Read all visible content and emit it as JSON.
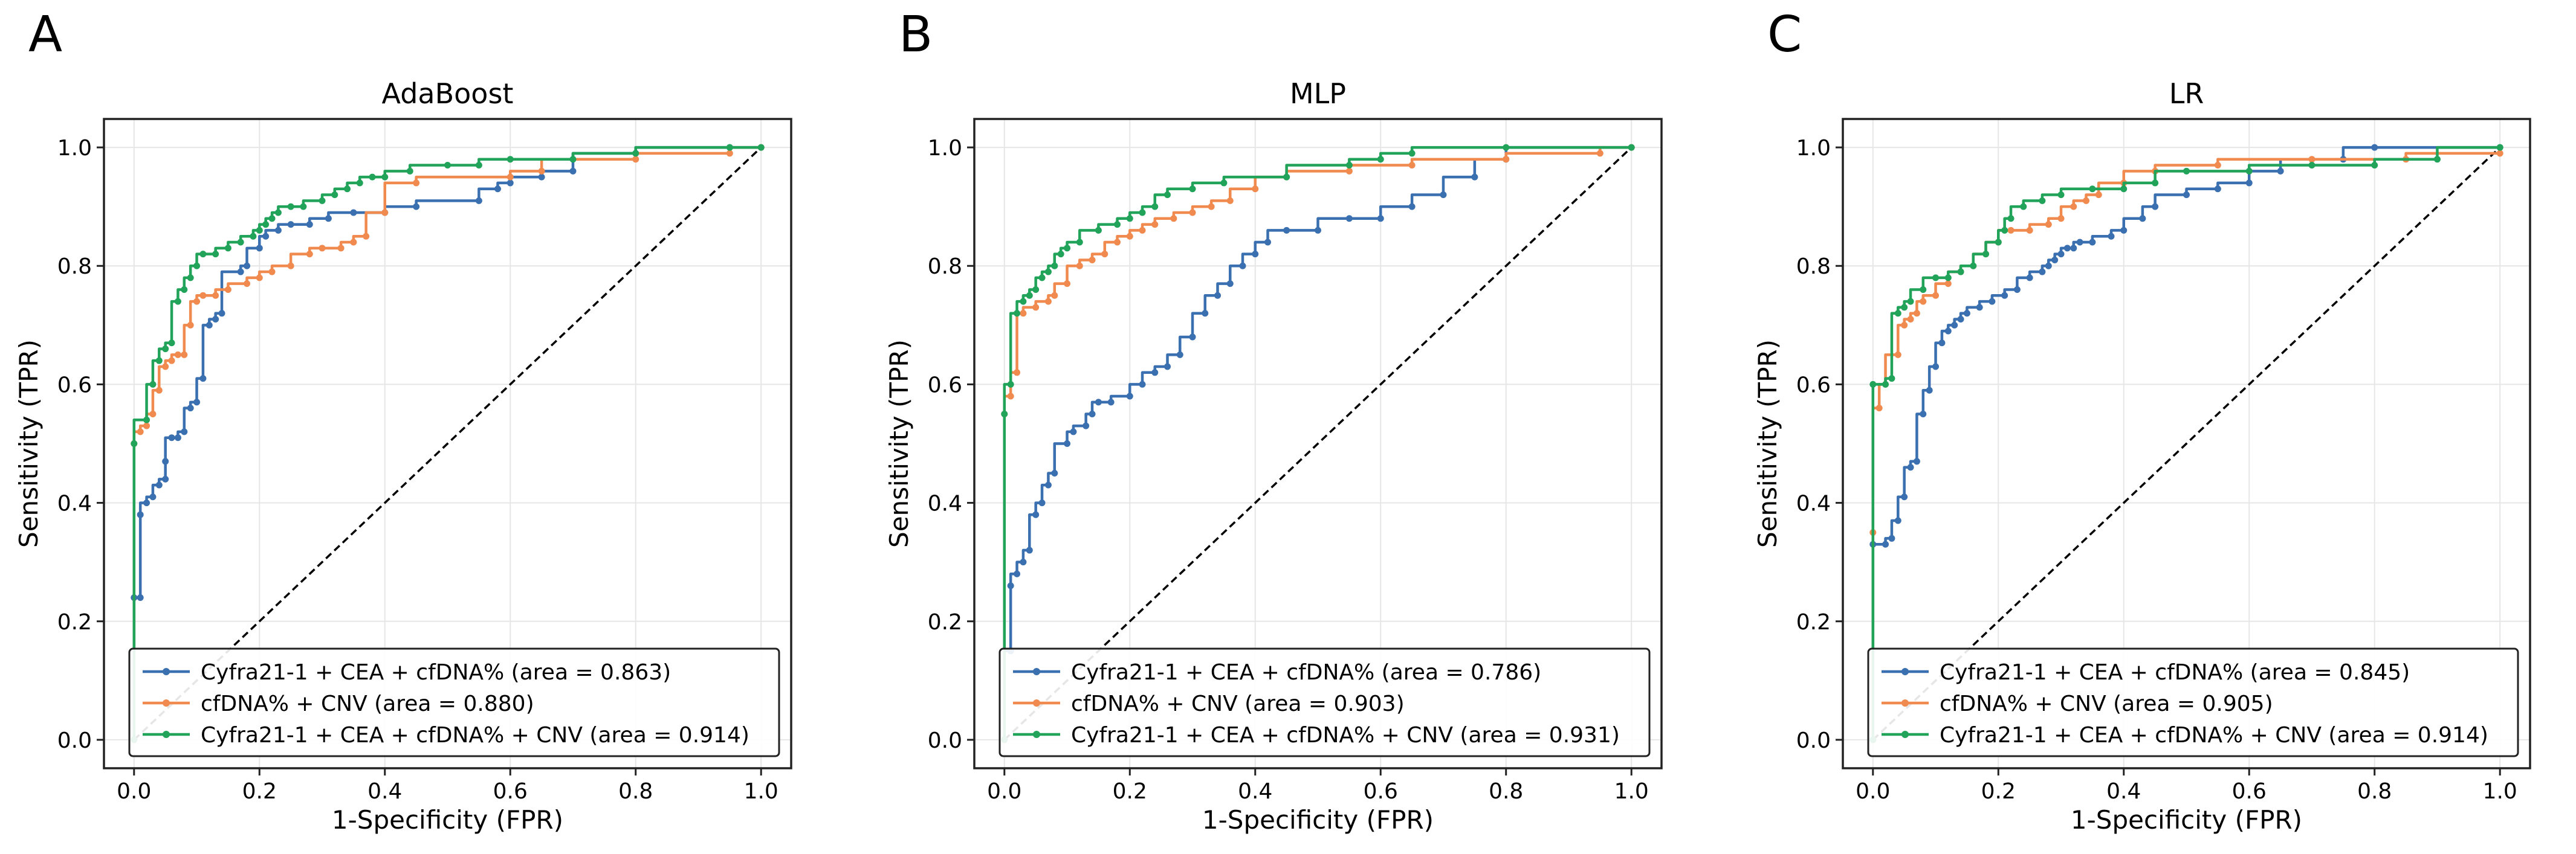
{
  "colors": {
    "series": [
      "#3a6fb0",
      "#f08a4e",
      "#21a35a"
    ],
    "diagonal": "#000000",
    "grid": "#e6e6e6",
    "axis": "#222222",
    "legend_border": "#222222"
  },
  "chart_data": [
    {
      "panel_label": "A",
      "type": "line",
      "title": "AdaBoost",
      "xlabel": "1-Specificity (FPR)",
      "ylabel": "Sensitivity (TPR)",
      "xlim": [
        0,
        1
      ],
      "ylim": [
        0,
        1
      ],
      "xticks": [
        "0.0",
        "0.2",
        "0.4",
        "0.6",
        "0.8",
        "1.0"
      ],
      "yticks": [
        "0.0",
        "0.2",
        "0.4",
        "0.6",
        "0.8",
        "1.0"
      ],
      "grid": true,
      "legend_position": "lower-right",
      "diagonal": "dashed",
      "series": [
        {
          "name": "Cyfra21-1 + CEA + cfDNA% (area = 0.863)",
          "x": [
            0,
            0,
            0.01,
            0.01,
            0.02,
            0.03,
            0.04,
            0.05,
            0.05,
            0.06,
            0.07,
            0.08,
            0.09,
            0.1,
            0.11,
            0.12,
            0.13,
            0.14,
            0.17,
            0.18,
            0.2,
            0.21,
            0.23,
            0.25,
            0.28,
            0.31,
            0.35,
            0.4,
            0.45,
            0.55,
            0.58,
            0.6,
            0.65,
            0.7,
            0.8,
            0.95,
            1.0
          ],
          "y": [
            0,
            0.24,
            0.24,
            0.38,
            0.4,
            0.41,
            0.43,
            0.44,
            0.47,
            0.51,
            0.51,
            0.52,
            0.56,
            0.57,
            0.61,
            0.7,
            0.71,
            0.72,
            0.79,
            0.8,
            0.83,
            0.85,
            0.86,
            0.87,
            0.87,
            0.88,
            0.89,
            0.89,
            0.9,
            0.91,
            0.93,
            0.94,
            0.95,
            0.96,
            0.99,
            1.0,
            1.0
          ]
        },
        {
          "name": "cfDNA% + CNV (area = 0.880)",
          "x": [
            0,
            0,
            0.01,
            0.02,
            0.03,
            0.04,
            0.05,
            0.06,
            0.07,
            0.08,
            0.09,
            0.1,
            0.11,
            0.13,
            0.15,
            0.18,
            0.2,
            0.22,
            0.25,
            0.28,
            0.3,
            0.33,
            0.35,
            0.37,
            0.4,
            0.45,
            0.6,
            0.65,
            0.8,
            0.95,
            1.0
          ],
          "y": [
            0,
            0.5,
            0.52,
            0.53,
            0.55,
            0.59,
            0.63,
            0.64,
            0.65,
            0.65,
            0.7,
            0.74,
            0.75,
            0.75,
            0.76,
            0.77,
            0.78,
            0.79,
            0.8,
            0.82,
            0.83,
            0.83,
            0.84,
            0.85,
            0.89,
            0.94,
            0.95,
            0.96,
            0.98,
            0.99,
            1.0
          ]
        },
        {
          "name": "Cyfra21-1 + CEA + cfDNA% + CNV (area = 0.914)",
          "x": [
            0,
            0,
            0.02,
            0.03,
            0.04,
            0.05,
            0.06,
            0.07,
            0.08,
            0.09,
            0.1,
            0.11,
            0.13,
            0.15,
            0.17,
            0.19,
            0.2,
            0.21,
            0.22,
            0.23,
            0.25,
            0.27,
            0.3,
            0.32,
            0.34,
            0.36,
            0.38,
            0.4,
            0.44,
            0.5,
            0.55,
            0.6,
            0.7,
            0.8,
            0.95,
            1.0
          ],
          "y": [
            0,
            0.5,
            0.54,
            0.6,
            0.64,
            0.66,
            0.67,
            0.74,
            0.76,
            0.78,
            0.8,
            0.82,
            0.82,
            0.83,
            0.84,
            0.85,
            0.86,
            0.87,
            0.88,
            0.89,
            0.9,
            0.9,
            0.91,
            0.92,
            0.93,
            0.94,
            0.95,
            0.95,
            0.96,
            0.97,
            0.97,
            0.98,
            0.98,
            0.99,
            1.0,
            1.0
          ]
        }
      ]
    },
    {
      "panel_label": "B",
      "type": "line",
      "title": "MLP",
      "xlabel": "1-Specificity (FPR)",
      "ylabel": "Sensitivity (TPR)",
      "xlim": [
        0,
        1
      ],
      "ylim": [
        0,
        1
      ],
      "xticks": [
        "0.0",
        "0.2",
        "0.4",
        "0.6",
        "0.8",
        "1.0"
      ],
      "yticks": [
        "0.0",
        "0.2",
        "0.4",
        "0.6",
        "0.8",
        "1.0"
      ],
      "grid": true,
      "legend_position": "lower-right",
      "diagonal": "dashed",
      "series": [
        {
          "name": "Cyfra21-1 + CEA + cfDNA% (area = 0.786)",
          "x": [
            0,
            0.01,
            0.01,
            0.02,
            0.03,
            0.04,
            0.05,
            0.06,
            0.07,
            0.08,
            0.1,
            0.11,
            0.13,
            0.14,
            0.15,
            0.17,
            0.2,
            0.22,
            0.24,
            0.26,
            0.28,
            0.3,
            0.32,
            0.34,
            0.36,
            0.38,
            0.4,
            0.42,
            0.45,
            0.5,
            0.55,
            0.6,
            0.65,
            0.7,
            0.75,
            0.8,
            1.0
          ],
          "y": [
            0,
            0.15,
            0.26,
            0.28,
            0.3,
            0.32,
            0.38,
            0.4,
            0.43,
            0.45,
            0.5,
            0.52,
            0.53,
            0.55,
            0.57,
            0.57,
            0.58,
            0.6,
            0.62,
            0.63,
            0.65,
            0.68,
            0.72,
            0.75,
            0.77,
            0.8,
            0.82,
            0.84,
            0.86,
            0.86,
            0.88,
            0.88,
            0.9,
            0.92,
            0.95,
            0.98,
            1.0
          ]
        },
        {
          "name": "cfDNA% + CNV (area = 0.903)",
          "x": [
            0,
            0,
            0.01,
            0.02,
            0.03,
            0.05,
            0.07,
            0.08,
            0.1,
            0.12,
            0.14,
            0.16,
            0.18,
            0.2,
            0.22,
            0.24,
            0.27,
            0.3,
            0.33,
            0.36,
            0.4,
            0.45,
            0.55,
            0.65,
            0.8,
            0.95,
            1.0
          ],
          "y": [
            0,
            0.55,
            0.58,
            0.62,
            0.72,
            0.73,
            0.74,
            0.75,
            0.77,
            0.8,
            0.81,
            0.82,
            0.84,
            0.85,
            0.86,
            0.87,
            0.88,
            0.89,
            0.9,
            0.91,
            0.93,
            0.95,
            0.96,
            0.97,
            0.98,
            0.99,
            1.0
          ]
        },
        {
          "name": "Cyfra21-1 + CEA + cfDNA% + CNV (area = 0.931)",
          "x": [
            0,
            0,
            0.01,
            0.02,
            0.03,
            0.04,
            0.05,
            0.06,
            0.07,
            0.08,
            0.09,
            0.1,
            0.12,
            0.15,
            0.18,
            0.2,
            0.22,
            0.24,
            0.26,
            0.3,
            0.35,
            0.45,
            0.55,
            0.6,
            0.65,
            0.8,
            1.0
          ],
          "y": [
            0,
            0.55,
            0.6,
            0.72,
            0.74,
            0.75,
            0.76,
            0.78,
            0.79,
            0.8,
            0.82,
            0.83,
            0.84,
            0.86,
            0.87,
            0.88,
            0.89,
            0.9,
            0.92,
            0.93,
            0.94,
            0.95,
            0.97,
            0.98,
            0.99,
            1.0,
            1.0
          ]
        }
      ]
    },
    {
      "panel_label": "C",
      "type": "line",
      "title": "LR",
      "xlabel": "1-Specificity (FPR)",
      "ylabel": "Sensitivity (TPR)",
      "xlim": [
        0,
        1
      ],
      "ylim": [
        0,
        1
      ],
      "xticks": [
        "0.0",
        "0.2",
        "0.4",
        "0.6",
        "0.8",
        "1.0"
      ],
      "yticks": [
        "0.0",
        "0.2",
        "0.4",
        "0.6",
        "0.8",
        "1.0"
      ],
      "grid": true,
      "legend_position": "lower-right",
      "diagonal": "dashed",
      "series": [
        {
          "name": "Cyfra21-1 + CEA + cfDNA% (area = 0.845)",
          "x": [
            0,
            0,
            0.02,
            0.03,
            0.04,
            0.05,
            0.06,
            0.07,
            0.08,
            0.09,
            0.1,
            0.11,
            0.12,
            0.13,
            0.14,
            0.15,
            0.17,
            0.19,
            0.21,
            0.23,
            0.25,
            0.27,
            0.28,
            0.29,
            0.3,
            0.31,
            0.32,
            0.33,
            0.35,
            0.38,
            0.4,
            0.43,
            0.45,
            0.5,
            0.55,
            0.6,
            0.65,
            0.75,
            0.8,
            1.0
          ],
          "y": [
            0,
            0.33,
            0.33,
            0.34,
            0.37,
            0.41,
            0.46,
            0.47,
            0.55,
            0.59,
            0.63,
            0.67,
            0.69,
            0.7,
            0.71,
            0.72,
            0.73,
            0.74,
            0.75,
            0.76,
            0.78,
            0.79,
            0.8,
            0.81,
            0.82,
            0.83,
            0.83,
            0.84,
            0.84,
            0.85,
            0.86,
            0.88,
            0.9,
            0.92,
            0.93,
            0.94,
            0.96,
            0.98,
            1.0,
            1.0
          ]
        },
        {
          "name": "cfDNA% + CNV (area = 0.905)",
          "x": [
            0,
            0,
            0.01,
            0.02,
            0.04,
            0.05,
            0.06,
            0.07,
            0.08,
            0.1,
            0.12,
            0.14,
            0.16,
            0.18,
            0.2,
            0.22,
            0.25,
            0.28,
            0.3,
            0.32,
            0.34,
            0.36,
            0.4,
            0.45,
            0.55,
            0.7,
            0.85,
            1.0
          ],
          "y": [
            0,
            0.35,
            0.56,
            0.6,
            0.65,
            0.7,
            0.71,
            0.72,
            0.74,
            0.75,
            0.77,
            0.79,
            0.8,
            0.82,
            0.84,
            0.86,
            0.86,
            0.87,
            0.88,
            0.9,
            0.91,
            0.92,
            0.94,
            0.96,
            0.97,
            0.98,
            0.98,
            0.99
          ]
        },
        {
          "name": "Cyfra21-1 + CEA + cfDNA% + CNV (area = 0.914)",
          "x": [
            0,
            0,
            0.02,
            0.03,
            0.04,
            0.05,
            0.06,
            0.08,
            0.1,
            0.12,
            0.14,
            0.16,
            0.18,
            0.2,
            0.21,
            0.22,
            0.24,
            0.27,
            0.3,
            0.35,
            0.4,
            0.45,
            0.5,
            0.6,
            0.7,
            0.8,
            0.9,
            1.0
          ],
          "y": [
            0,
            0.6,
            0.6,
            0.61,
            0.72,
            0.73,
            0.74,
            0.76,
            0.78,
            0.78,
            0.79,
            0.8,
            0.82,
            0.84,
            0.86,
            0.88,
            0.9,
            0.91,
            0.92,
            0.93,
            0.93,
            0.94,
            0.96,
            0.96,
            0.97,
            0.97,
            0.98,
            1.0
          ]
        }
      ]
    }
  ]
}
